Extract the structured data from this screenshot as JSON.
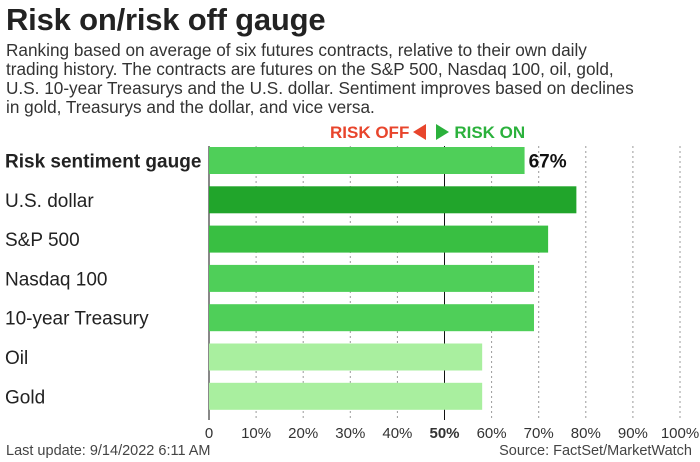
{
  "title": "Risk on/risk off gauge",
  "subtitle_lines": [
    "Ranking based on average of six futures contracts, relative to their own daily",
    "trading history. The contracts are futures on the S&P 500, Nasdaq 100, oil, gold,",
    "U.S. 10-year Treasurys and the U.S. dollar. Sentiment improves based on declines",
    "in gold, Treasurys and the dollar, and vice versa."
  ],
  "legend": {
    "risk_off": "RISK OFF",
    "risk_on": "RISK ON"
  },
  "footer": {
    "last_update": "Last update: 9/14/2022 6:11 AM",
    "source": "Source: FactSet/MarketWatch"
  },
  "chart_data": {
    "type": "bar",
    "orientation": "horizontal",
    "categories": [
      "Risk sentiment gauge",
      "U.S. dollar",
      "S&P 500",
      "Nasdaq 100",
      "10-year Treasury",
      "Oil",
      "Gold"
    ],
    "values": [
      67,
      78,
      72,
      69,
      69,
      58,
      58
    ],
    "value_labels": [
      "67%",
      "",
      "",
      "",
      "",
      "",
      ""
    ],
    "bold_categories": [
      "Risk sentiment gauge"
    ],
    "bar_colors": [
      "#4fcf59",
      "#21a52b",
      "#39bf42",
      "#4fcf59",
      "#4fcf59",
      "#a9ef9f",
      "#a9ef9f"
    ],
    "xlim": [
      0,
      100
    ],
    "xticks": [
      0,
      10,
      20,
      30,
      40,
      50,
      60,
      70,
      80,
      90,
      100
    ],
    "xtick_labels": [
      "0",
      "10%",
      "20%",
      "30%",
      "40%",
      "50%",
      "60%",
      "70%",
      "80%",
      "90%",
      "100%"
    ],
    "grid": "vertical dotted lines, solid line at 50%",
    "colors": {
      "risk_off": "#e8452c",
      "risk_on": "#2bb13c"
    }
  }
}
